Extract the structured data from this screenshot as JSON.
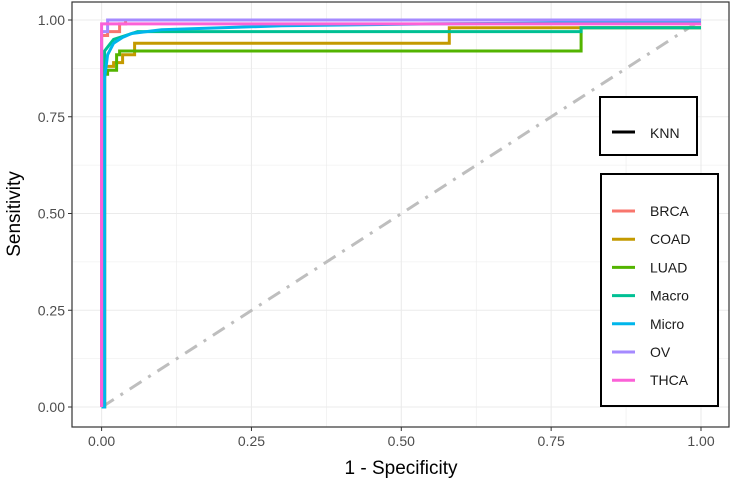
{
  "chart_data": {
    "type": "line",
    "title": "",
    "xlabel": "1 - Specificity",
    "ylabel": "Sensitivity",
    "xlim": [
      0,
      1
    ],
    "ylim": [
      0,
      1
    ],
    "x_ticks": [
      "0.00",
      "0.25",
      "0.50",
      "0.75",
      "1.00"
    ],
    "y_ticks": [
      "0.00",
      "0.25",
      "0.50",
      "0.75",
      "1.00"
    ],
    "grid": true,
    "legend_position": "right-inside",
    "linetype_legend": {
      "title": "",
      "entries": [
        {
          "label": "KNN",
          "color": "#000000"
        }
      ]
    },
    "reference_line": {
      "style": "dotdash",
      "color": "#bebebe",
      "points": [
        [
          0,
          0
        ],
        [
          1,
          1
        ]
      ]
    },
    "series": [
      {
        "name": "BRCA",
        "color": "#F8766D",
        "points": [
          [
            0,
            0
          ],
          [
            0,
            0.96
          ],
          [
            0.01,
            0.96
          ],
          [
            0.01,
            0.97
          ],
          [
            0.03,
            0.97
          ],
          [
            0.03,
            0.99
          ],
          [
            0.04,
            0.99
          ],
          [
            0.04,
            1.0
          ],
          [
            1,
            1.0
          ]
        ]
      },
      {
        "name": "COAD",
        "color": "#C49A00",
        "points": [
          [
            0,
            0
          ],
          [
            0.005,
            0
          ],
          [
            0.005,
            0.88
          ],
          [
            0.02,
            0.88
          ],
          [
            0.02,
            0.89
          ],
          [
            0.035,
            0.89
          ],
          [
            0.035,
            0.91
          ],
          [
            0.055,
            0.91
          ],
          [
            0.055,
            0.94
          ],
          [
            0.58,
            0.94
          ],
          [
            0.58,
            0.98
          ],
          [
            1,
            0.98
          ]
        ]
      },
      {
        "name": "LUAD",
        "color": "#53B400",
        "points": [
          [
            0,
            0
          ],
          [
            0.005,
            0
          ],
          [
            0.005,
            0.86
          ],
          [
            0.01,
            0.86
          ],
          [
            0.01,
            0.87
          ],
          [
            0.025,
            0.87
          ],
          [
            0.025,
            0.91
          ],
          [
            0.03,
            0.91
          ],
          [
            0.03,
            0.92
          ],
          [
            0.8,
            0.92
          ],
          [
            0.8,
            0.98
          ],
          [
            1,
            0.98
          ]
        ]
      },
      {
        "name": "Macro",
        "color": "#00C094",
        "points": [
          [
            0,
            0
          ],
          [
            0.005,
            0
          ],
          [
            0.005,
            0.92
          ],
          [
            0.01,
            0.93
          ],
          [
            0.02,
            0.95
          ],
          [
            0.04,
            0.96
          ],
          [
            0.06,
            0.97
          ],
          [
            0.8,
            0.97
          ],
          [
            0.8,
            0.98
          ],
          [
            1,
            0.98
          ]
        ]
      },
      {
        "name": "Micro",
        "color": "#00B6EB",
        "points": [
          [
            0,
            0
          ],
          [
            0.005,
            0
          ],
          [
            0.005,
            0.85
          ],
          [
            0.01,
            0.91
          ],
          [
            0.02,
            0.94
          ],
          [
            0.035,
            0.955
          ],
          [
            0.05,
            0.965
          ],
          [
            0.1,
            0.975
          ],
          [
            0.3,
            0.985
          ],
          [
            0.55,
            0.99
          ],
          [
            1,
            0.995
          ]
        ]
      },
      {
        "name": "OV",
        "color": "#A58AFF",
        "points": [
          [
            0,
            0
          ],
          [
            0,
            0.97
          ],
          [
            0.01,
            0.97
          ],
          [
            0.01,
            1.0
          ],
          [
            1,
            1.0
          ]
        ]
      },
      {
        "name": "THCA",
        "color": "#FB61D7",
        "points": [
          [
            0,
            0
          ],
          [
            0,
            0.99
          ],
          [
            1,
            0.99
          ]
        ]
      }
    ]
  },
  "legend": {
    "model_label": "KNN",
    "classes": [
      {
        "label": "BRCA",
        "color": "#F8766D"
      },
      {
        "label": "COAD",
        "color": "#C49A00"
      },
      {
        "label": "LUAD",
        "color": "#53B400"
      },
      {
        "label": "Macro",
        "color": "#00C094"
      },
      {
        "label": "Micro",
        "color": "#00B6EB"
      },
      {
        "label": "OV",
        "color": "#A58AFF"
      },
      {
        "label": "THCA",
        "color": "#FB61D7"
      }
    ]
  }
}
